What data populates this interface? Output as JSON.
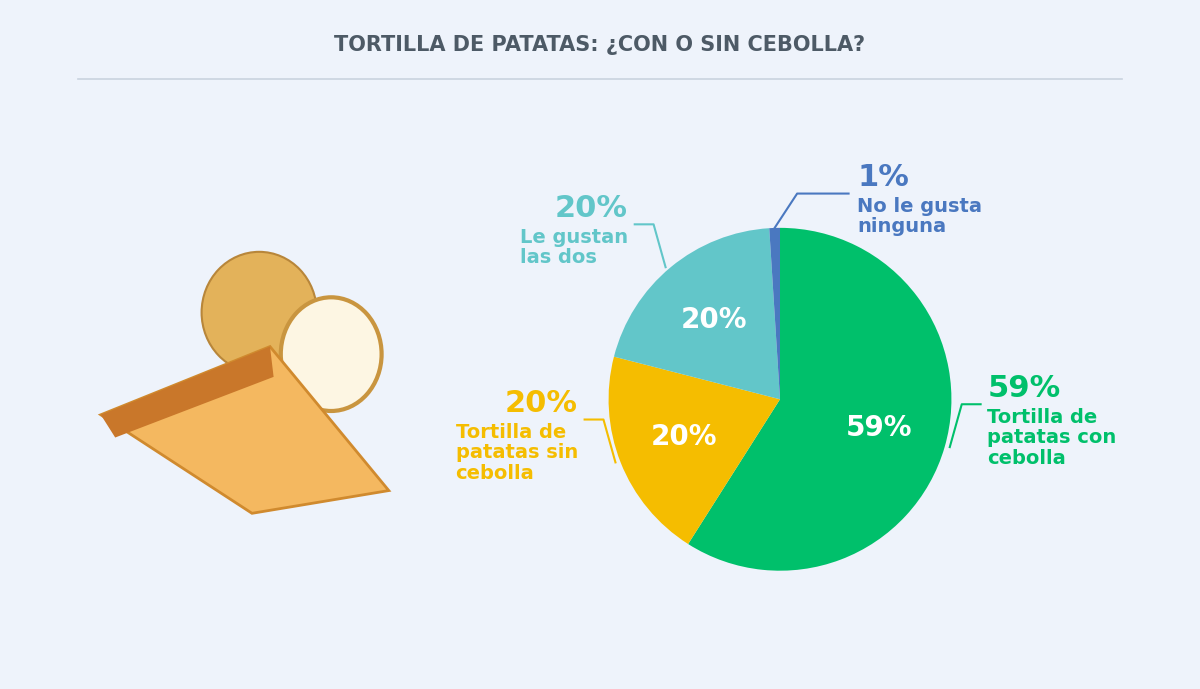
{
  "chart_data": {
    "type": "pie",
    "title": "TORTILLA DE PATATAS: ¿CON O SIN CEBOLLA?",
    "categories": [
      "Tortilla de patatas con cebolla",
      "Tortilla de patatas sin cebolla",
      "Le gustan las dos",
      "No le gusta ninguna"
    ],
    "values": [
      59,
      20,
      20,
      1
    ],
    "value_labels": [
      "59%",
      "20%",
      "20%",
      "1%"
    ],
    "colors": [
      "#00c06b",
      "#f5bd00",
      "#62c6c9",
      "#4a78c0"
    ],
    "data_labels": true
  }
}
